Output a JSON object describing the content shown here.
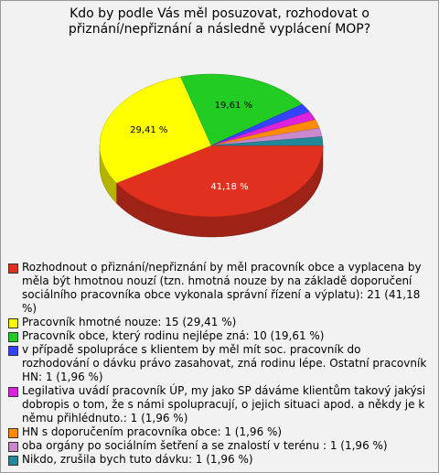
{
  "chart_data": {
    "type": "pie",
    "title": "Kdo by podle Vás měl posuzovat, rozhodovat o přiznání/nepřiznání a následně vyplácení MOP?",
    "categories": [
      "Rozhodnout o přiznání/nepřiznání by měl pracovník obce a vyplacena by měla být hmotnou nouzí (tzn. hmotná nouze by na základě doporučení sociálního pracovníka obce vykonala správní řízení a výplatu): 21 (41,18 %)",
      "Pracovník hmotné nouze: 15 (29,41 %)",
      "Pracovník obce, který rodinu nejlépe zná: 10 (19,61 %)",
      "v případě spolupráce s klientem by měl mít soc. pracovník do rozhodování o dávku právo zasahovat, zná rodinu lépe. Ostatní pracovník HN: 1 (1,96 %)",
      "Legilativa uvádí pracovník ÚP, my jako SP dáváme klientům takový jakýsi dobropis o tom, že s námi spolupracují, o jejich situaci apod. a někdy je k němu přihlédnuto.: 1 (1,96 %)",
      "HN s doporučením pracovníka obce: 1 (1,96 %)",
      "oba orgány po sociálním šetření a se znalostí v terénu : 1 (1,96 %)",
      "Nikdo, zrušila bych tuto dávku: 1 (1,96 %)"
    ],
    "values": [
      41.18,
      29.41,
      19.61,
      1.96,
      1.96,
      1.96,
      1.96,
      1.96
    ],
    "value_labels": [
      "41,18 %",
      "29,41 %",
      "19,61 %",
      null,
      null,
      null,
      null,
      null
    ],
    "colors": [
      "#e2301f",
      "#ffff00",
      "#22cc22",
      "#3344ff",
      "#dd22dd",
      "#ff8c00",
      "#cc88cc",
      "#22889a"
    ]
  }
}
